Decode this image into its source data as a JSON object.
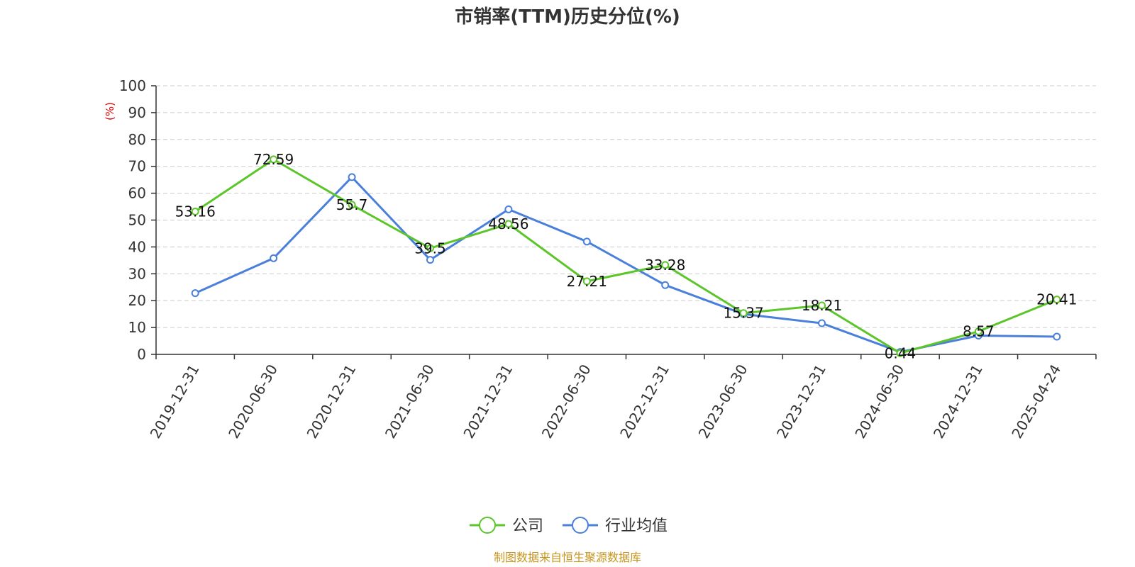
{
  "chart_data": {
    "type": "line",
    "title": "市销率(TTM)历史分位(%)",
    "ylabel": "(%)",
    "ylim": [
      0,
      100
    ],
    "yticks": [
      0,
      10,
      20,
      30,
      40,
      50,
      60,
      70,
      80,
      90,
      100
    ],
    "grid": true,
    "legend_position": "bottom",
    "categories": [
      "2019-12-31",
      "2020-06-30",
      "2020-12-31",
      "2021-06-30",
      "2021-12-31",
      "2022-06-30",
      "2022-12-31",
      "2023-06-30",
      "2023-12-31",
      "2024-06-30",
      "2024-12-31",
      "2025-04-24"
    ],
    "series": [
      {
        "name": "公司",
        "color": "#5cc52a",
        "values": [
          53.16,
          72.59,
          55.7,
          39.5,
          48.56,
          27.21,
          33.28,
          15.37,
          18.21,
          0.44,
          8.57,
          20.41
        ],
        "labels": [
          "53.16",
          "72.59",
          "55.7",
          "39.5",
          "48.56",
          "27.21",
          "33.28",
          "15.37",
          "18.21",
          "0.44",
          "8.57",
          "20.41"
        ]
      },
      {
        "name": "行业均值",
        "color": "#4a7fdc",
        "values": [
          22.8,
          35.8,
          66.0,
          35.2,
          54.0,
          42.0,
          25.8,
          15.0,
          11.6,
          0.9,
          7.0,
          6.6
        ]
      }
    ],
    "source": "制图数据来自恒生聚源数据库"
  }
}
